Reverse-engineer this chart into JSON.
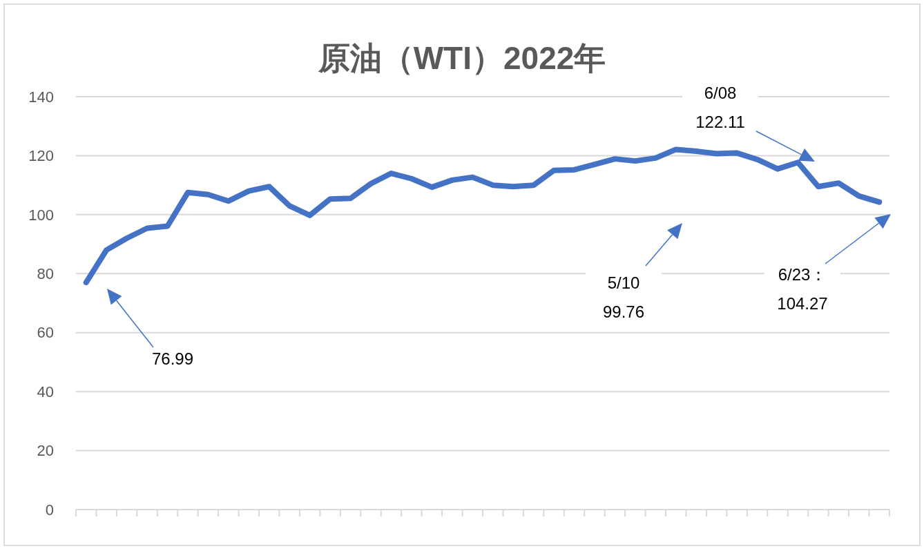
{
  "chart_data": {
    "type": "line",
    "title": "原油（WTI）2022年",
    "categories": [
      null,
      null,
      null,
      null,
      null,
      null,
      null,
      null,
      null,
      null,
      null,
      null,
      null,
      null,
      null,
      null,
      null,
      null,
      null,
      null,
      null,
      null,
      null,
      null,
      null,
      null,
      null,
      null,
      null,
      null,
      null,
      null,
      null,
      null,
      null,
      null,
      null,
      null,
      null,
      null
    ],
    "series": [
      {
        "color": "#4472c4",
        "values": [
          76.99,
          88,
          92,
          95.4,
          96.1,
          107.5,
          106.8,
          104.6,
          108,
          109.5,
          103,
          99.76,
          105.3,
          105.5,
          110.5,
          114,
          112.2,
          109.3,
          111.7,
          112.7,
          110,
          109.5,
          110,
          115,
          115.2,
          117,
          118.9,
          118.2,
          119.2,
          122.11,
          121.5,
          120.7,
          120.9,
          118.7,
          115.5,
          117.7,
          109.5,
          110.7,
          106.3,
          104.27
        ]
      }
    ],
    "ylim": [
      0,
      140
    ],
    "yticks": [
      0,
      20,
      40,
      60,
      80,
      100,
      120,
      140
    ],
    "grid": "y",
    "marker": "none",
    "line_style": "solid",
    "annotations": [
      "76.99",
      "5/10\n99.76",
      "6/08\n122.11",
      "6/23：\n104.27"
    ]
  }
}
